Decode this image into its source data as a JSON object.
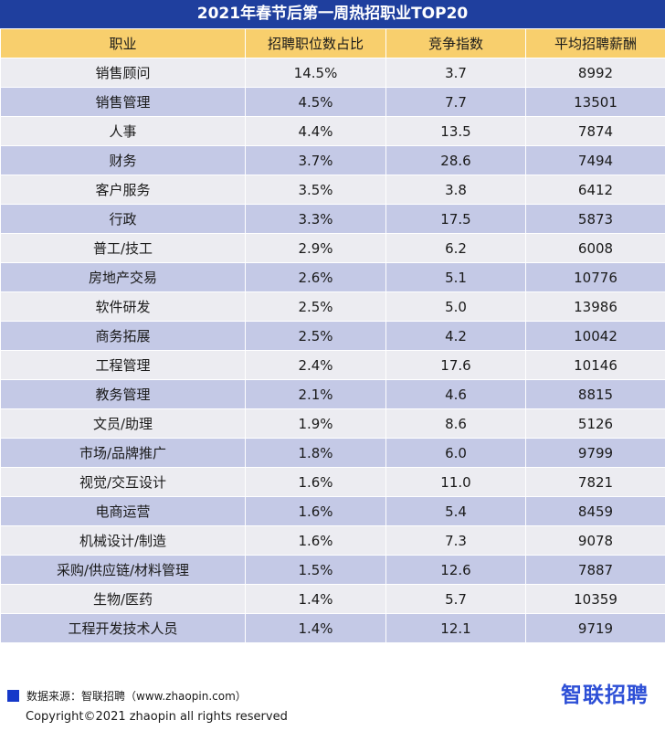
{
  "chart_data": {
    "type": "table",
    "title": "2021年春节后第一周热招职业TOP20",
    "columns": [
      "职业",
      "招聘职位数占比",
      "竞争指数",
      "平均招聘薪酬"
    ],
    "rows": [
      [
        "销售顾问",
        "14.5%",
        "3.7",
        "8992"
      ],
      [
        "销售管理",
        "4.5%",
        "7.7",
        "13501"
      ],
      [
        "人事",
        "4.4%",
        "13.5",
        "7874"
      ],
      [
        "财务",
        "3.7%",
        "28.6",
        "7494"
      ],
      [
        "客户服务",
        "3.5%",
        "3.8",
        "6412"
      ],
      [
        "行政",
        "3.3%",
        "17.5",
        "5873"
      ],
      [
        "普工/技工",
        "2.9%",
        "6.2",
        "6008"
      ],
      [
        "房地产交易",
        "2.6%",
        "5.1",
        "10776"
      ],
      [
        "软件研发",
        "2.5%",
        "5.0",
        "13986"
      ],
      [
        "商务拓展",
        "2.5%",
        "4.2",
        "10042"
      ],
      [
        "工程管理",
        "2.4%",
        "17.6",
        "10146"
      ],
      [
        "教务管理",
        "2.1%",
        "4.6",
        "8815"
      ],
      [
        "文员/助理",
        "1.9%",
        "8.6",
        "5126"
      ],
      [
        "市场/品牌推广",
        "1.8%",
        "6.0",
        "9799"
      ],
      [
        "视觉/交互设计",
        "1.6%",
        "11.0",
        "7821"
      ],
      [
        "电商运营",
        "1.6%",
        "5.4",
        "8459"
      ],
      [
        "机械设计/制造",
        "1.6%",
        "7.3",
        "9078"
      ],
      [
        "采购/供应链/材料管理",
        "1.5%",
        "12.6",
        "7887"
      ],
      [
        "生物/医药",
        "1.4%",
        "5.7",
        "10359"
      ],
      [
        "工程开发技术人员",
        "1.4%",
        "12.1",
        "9719"
      ]
    ]
  },
  "footer": {
    "source": "数据来源：智联招聘（www.zhaopin.com）",
    "brand": "智联招聘",
    "copyright": "Copyright©2021 zhaopin all rights reserved"
  },
  "colors": {
    "title_bg": "#1f3f9e",
    "header_bg": "#f8cf6d",
    "row_light": "#ececf1",
    "row_dark": "#c4c9e6",
    "brand": "#2d4fd6"
  }
}
